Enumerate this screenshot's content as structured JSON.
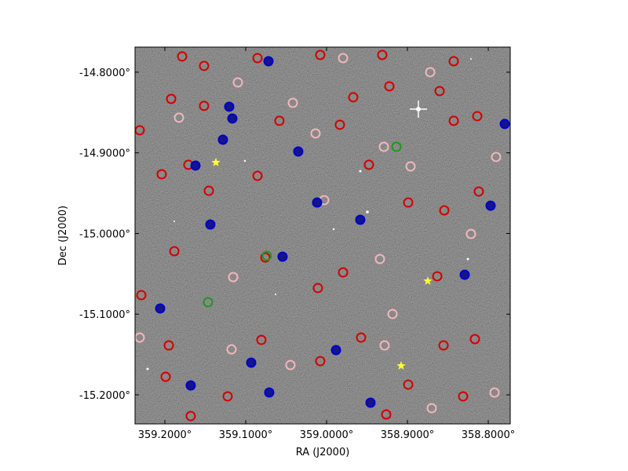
{
  "chart_data": {
    "type": "scatter",
    "xlabel": "RA (J2000)",
    "ylabel": "Dec (J2000)",
    "xlim": [
      359.2369,
      358.7728
    ],
    "ylim": [
      -15.236,
      -14.7689
    ],
    "xticks": [
      {
        "value": 359.2,
        "label": "359.2000°"
      },
      {
        "value": 359.1,
        "label": "359.1000°"
      },
      {
        "value": 359.0,
        "label": "359.0000°"
      },
      {
        "value": 358.9,
        "label": "358.9000°"
      },
      {
        "value": 358.8,
        "label": "358.8000°"
      }
    ],
    "yticks": [
      {
        "value": -14.8,
        "label": "-14.8000°"
      },
      {
        "value": -14.9,
        "label": "-14.9000°"
      },
      {
        "value": -15.0,
        "label": "-15.0000°"
      },
      {
        "value": -15.1,
        "label": "-15.1000°"
      },
      {
        "value": -15.2,
        "label": "-15.2000°"
      }
    ],
    "series": [
      {
        "marker": "circle",
        "color": "#d40000",
        "x": [
          359.1786,
          359.1515,
          359.0854,
          359.0078,
          358.9311,
          358.8427,
          359.1922,
          359.1515,
          359.0583,
          358.967,
          358.9223,
          358.8602,
          358.8427,
          358.8136,
          359.2311,
          359.1709,
          359.2039,
          359.1456,
          359.0854,
          358.9835,
          358.9476,
          358.899,
          358.8544,
          358.8117,
          359.1883,
          359.0757,
          359.0107,
          358.9796,
          358.8631,
          359.2291,
          359.1951,
          359.0806,
          359.0078,
          358.9573,
          358.8553,
          358.8165,
          359.199,
          359.1223,
          358.899,
          358.8311,
          359.168,
          358.9262
        ],
        "y": [
          -14.7805,
          -14.7922,
          -14.7825,
          -14.7786,
          -14.7786,
          -14.7864,
          -14.8331,
          -14.8418,
          -14.8603,
          -14.8311,
          -14.8175,
          -14.8234,
          -14.8603,
          -14.8545,
          -14.872,
          -14.9148,
          -14.9265,
          -14.947,
          -14.9285,
          -14.8652,
          -14.9148,
          -14.9616,
          -14.9713,
          -14.9479,
          -15.0219,
          -15.0297,
          -15.0676,
          -15.0482,
          -15.053,
          -15.0764,
          -15.1387,
          -15.1319,
          -15.1582,
          -15.129,
          -15.1387,
          -15.1309,
          -15.1776,
          -15.2019,
          -15.1873,
          -15.2019,
          -15.2263,
          -15.2243
        ]
      },
      {
        "marker": "circle",
        "color": "#f2b6bc",
        "x": [
          358.9796,
          358.8718,
          359.1097,
          359.0417,
          359.1825,
          359.0136,
          358.9291,
          358.8961,
          358.7903,
          359.0029,
          358.8214,
          358.934,
          359.1155,
          358.9184,
          359.2311,
          359.1175,
          359.0447,
          358.9282,
          358.8699,
          358.7922
        ],
        "y": [
          -14.7825,
          -14.8,
          -14.8127,
          -14.838,
          -14.8564,
          -14.8759,
          -14.8925,
          -14.9168,
          -14.9051,
          -14.9586,
          -15.0005,
          -15.0316,
          -15.054,
          -15.0998,
          -15.129,
          -15.1436,
          -15.163,
          -15.1387,
          -15.2165,
          -15.1971
        ]
      },
      {
        "marker": "circle",
        "color": "#0000cc",
        "fill": "#14148c",
        "x": [
          359.0718,
          359.1204,
          359.1165,
          359.1621,
          359.1282,
          359.035,
          359.0117,
          359.1437,
          359.0544,
          358.9583,
          359.2058,
          358.9883,
          359.0932,
          359.168,
          359.0709,
          358.9456,
          358.8291,
          358.7971,
          358.7796
        ],
        "y": [
          -14.7864,
          -14.8428,
          -14.8574,
          -14.9158,
          -14.8837,
          -14.8983,
          -14.9616,
          -14.9888,
          -15.0287,
          -14.983,
          -15.0929,
          -15.1445,
          -15.1601,
          -15.1883,
          -15.1971,
          -15.2097,
          -15.0511,
          -14.9655,
          -14.8642
        ]
      },
      {
        "marker": "circle",
        "color": "#1a9a1a",
        "x": [
          359.1466,
          359.0738,
          358.9136
        ],
        "y": [
          -15.0852,
          -15.0277,
          -14.8925
        ]
      },
      {
        "marker": "star",
        "color": "#ffff33",
        "x": [
          359.1369,
          358.8748,
          358.9078
        ],
        "y": [
          -14.9119,
          -15.0589,
          -15.164
        ]
      }
    ]
  }
}
